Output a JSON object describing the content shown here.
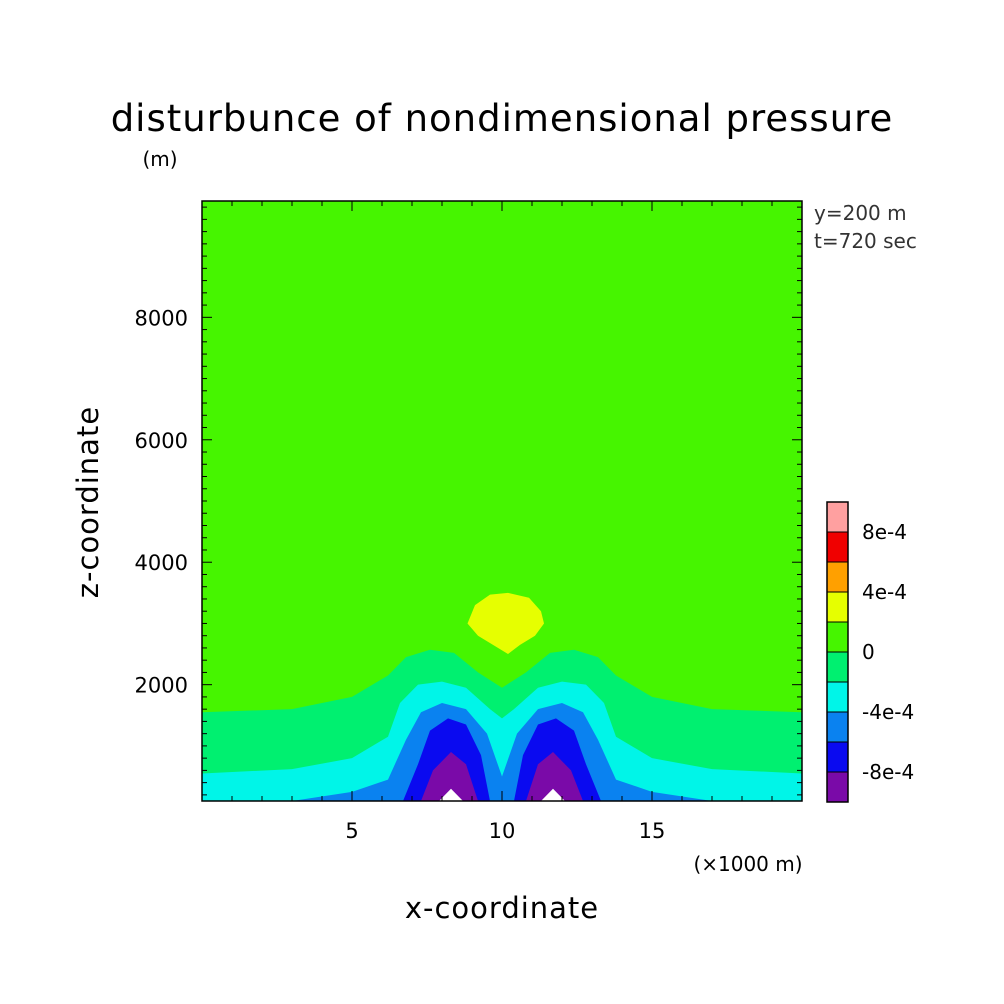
{
  "chart_data": {
    "type": "heatmap",
    "title": "disturbunce of nondimensional pressure",
    "ylabel": "z-coordinate",
    "yunit": "(m)",
    "xlabel": "x-coordinate",
    "xunit": "(×1000 m)",
    "annotations": [
      "y=200 m",
      "t=720 sec"
    ],
    "xlim": [
      0,
      20
    ],
    "ylim": [
      100,
      9900
    ],
    "x_ticks": [
      5,
      10,
      15
    ],
    "y_ticks": [
      2000,
      4000,
      6000,
      8000
    ],
    "grid": false,
    "legend_position": "right",
    "colorbar": {
      "levels": [
        -0.001,
        -0.0008,
        -0.0006,
        -0.0004,
        -0.0002,
        0,
        0.0002,
        0.0004,
        0.0006,
        0.0008,
        0.001
      ],
      "colors": [
        "#7a0aa8",
        "#0a0af0",
        "#0a82f0",
        "#00f5e8",
        "#00f070",
        "#46f500",
        "#e6ff00",
        "#ffa000",
        "#f00000",
        "#ffa0a0"
      ],
      "labels": [
        "-8e-4",
        "-4e-4",
        "0",
        "4e-4",
        "8e-4"
      ],
      "label_values": [
        -0.0008,
        -0.0004,
        0,
        0.0004,
        0.0008
      ]
    }
  }
}
